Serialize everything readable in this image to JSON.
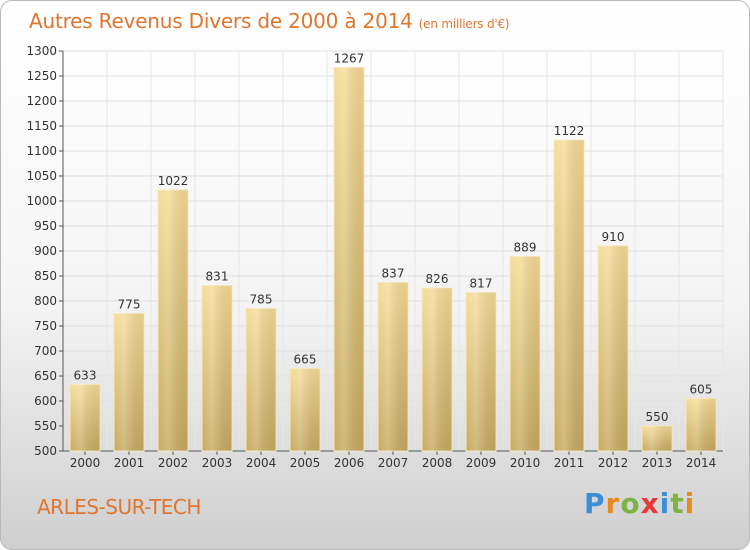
{
  "title": "Autres Revenus Divers de 2000 à 2014",
  "subtitle": "(en milliers d'€)",
  "town": "ARLES-SUR-TECH",
  "logo": {
    "text": "Proxiti",
    "letters": [
      "P",
      "r",
      "o",
      "x",
      "i",
      "t",
      "i"
    ],
    "colors": [
      "#3a8fd6",
      "#e88a1f",
      "#7cb342",
      "#e53935",
      "#3a8fd6",
      "#7cb342",
      "#e88a1f"
    ]
  },
  "colors": {
    "accent": "#e0752e",
    "bar_light": "#f5dc9a",
    "bar_dark": "#c9ae67"
  },
  "chart_data": {
    "type": "bar",
    "title": "Autres Revenus Divers de 2000 à 2014",
    "subtitle": "(en milliers d'€)",
    "categories": [
      "2000",
      "2001",
      "2002",
      "2003",
      "2004",
      "2005",
      "2006",
      "2007",
      "2008",
      "2009",
      "2010",
      "2011",
      "2012",
      "2013",
      "2014"
    ],
    "values": [
      633,
      775,
      1022,
      831,
      785,
      665,
      1267,
      837,
      826,
      817,
      889,
      1122,
      910,
      550,
      605
    ],
    "ylim": [
      500,
      1300
    ],
    "yticks": [
      500,
      550,
      600,
      650,
      700,
      750,
      800,
      850,
      900,
      950,
      1000,
      1050,
      1100,
      1150,
      1200,
      1250,
      1300
    ],
    "grid": true
  }
}
